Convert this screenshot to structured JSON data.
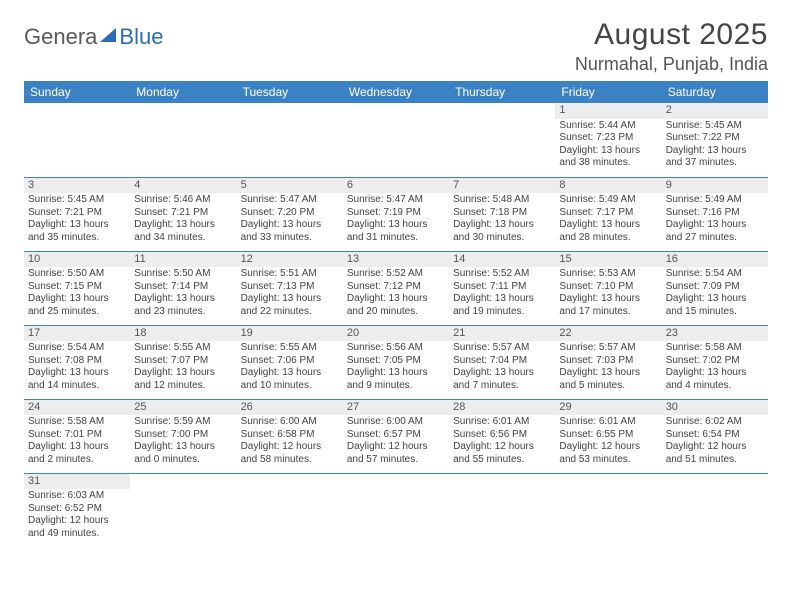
{
  "logo": {
    "part1": "Genera",
    "part2": "Blue"
  },
  "title": "August 2025",
  "location": "Nurmahal, Punjab, India",
  "header_bg": "#3b82c4",
  "header_fg": "#ffffff",
  "daynum_bg": "#ededed",
  "border_color": "#3b82c4",
  "weekdays": [
    "Sunday",
    "Monday",
    "Tuesday",
    "Wednesday",
    "Thursday",
    "Friday",
    "Saturday"
  ],
  "weeks": [
    [
      null,
      null,
      null,
      null,
      null,
      {
        "n": "1",
        "sr": "Sunrise: 5:44 AM",
        "ss": "Sunset: 7:23 PM",
        "d1": "Daylight: 13 hours",
        "d2": "and 38 minutes."
      },
      {
        "n": "2",
        "sr": "Sunrise: 5:45 AM",
        "ss": "Sunset: 7:22 PM",
        "d1": "Daylight: 13 hours",
        "d2": "and 37 minutes."
      }
    ],
    [
      {
        "n": "3",
        "sr": "Sunrise: 5:45 AM",
        "ss": "Sunset: 7:21 PM",
        "d1": "Daylight: 13 hours",
        "d2": "and 35 minutes."
      },
      {
        "n": "4",
        "sr": "Sunrise: 5:46 AM",
        "ss": "Sunset: 7:21 PM",
        "d1": "Daylight: 13 hours",
        "d2": "and 34 minutes."
      },
      {
        "n": "5",
        "sr": "Sunrise: 5:47 AM",
        "ss": "Sunset: 7:20 PM",
        "d1": "Daylight: 13 hours",
        "d2": "and 33 minutes."
      },
      {
        "n": "6",
        "sr": "Sunrise: 5:47 AM",
        "ss": "Sunset: 7:19 PM",
        "d1": "Daylight: 13 hours",
        "d2": "and 31 minutes."
      },
      {
        "n": "7",
        "sr": "Sunrise: 5:48 AM",
        "ss": "Sunset: 7:18 PM",
        "d1": "Daylight: 13 hours",
        "d2": "and 30 minutes."
      },
      {
        "n": "8",
        "sr": "Sunrise: 5:49 AM",
        "ss": "Sunset: 7:17 PM",
        "d1": "Daylight: 13 hours",
        "d2": "and 28 minutes."
      },
      {
        "n": "9",
        "sr": "Sunrise: 5:49 AM",
        "ss": "Sunset: 7:16 PM",
        "d1": "Daylight: 13 hours",
        "d2": "and 27 minutes."
      }
    ],
    [
      {
        "n": "10",
        "sr": "Sunrise: 5:50 AM",
        "ss": "Sunset: 7:15 PM",
        "d1": "Daylight: 13 hours",
        "d2": "and 25 minutes."
      },
      {
        "n": "11",
        "sr": "Sunrise: 5:50 AM",
        "ss": "Sunset: 7:14 PM",
        "d1": "Daylight: 13 hours",
        "d2": "and 23 minutes."
      },
      {
        "n": "12",
        "sr": "Sunrise: 5:51 AM",
        "ss": "Sunset: 7:13 PM",
        "d1": "Daylight: 13 hours",
        "d2": "and 22 minutes."
      },
      {
        "n": "13",
        "sr": "Sunrise: 5:52 AM",
        "ss": "Sunset: 7:12 PM",
        "d1": "Daylight: 13 hours",
        "d2": "and 20 minutes."
      },
      {
        "n": "14",
        "sr": "Sunrise: 5:52 AM",
        "ss": "Sunset: 7:11 PM",
        "d1": "Daylight: 13 hours",
        "d2": "and 19 minutes."
      },
      {
        "n": "15",
        "sr": "Sunrise: 5:53 AM",
        "ss": "Sunset: 7:10 PM",
        "d1": "Daylight: 13 hours",
        "d2": "and 17 minutes."
      },
      {
        "n": "16",
        "sr": "Sunrise: 5:54 AM",
        "ss": "Sunset: 7:09 PM",
        "d1": "Daylight: 13 hours",
        "d2": "and 15 minutes."
      }
    ],
    [
      {
        "n": "17",
        "sr": "Sunrise: 5:54 AM",
        "ss": "Sunset: 7:08 PM",
        "d1": "Daylight: 13 hours",
        "d2": "and 14 minutes."
      },
      {
        "n": "18",
        "sr": "Sunrise: 5:55 AM",
        "ss": "Sunset: 7:07 PM",
        "d1": "Daylight: 13 hours",
        "d2": "and 12 minutes."
      },
      {
        "n": "19",
        "sr": "Sunrise: 5:55 AM",
        "ss": "Sunset: 7:06 PM",
        "d1": "Daylight: 13 hours",
        "d2": "and 10 minutes."
      },
      {
        "n": "20",
        "sr": "Sunrise: 5:56 AM",
        "ss": "Sunset: 7:05 PM",
        "d1": "Daylight: 13 hours",
        "d2": "and 9 minutes."
      },
      {
        "n": "21",
        "sr": "Sunrise: 5:57 AM",
        "ss": "Sunset: 7:04 PM",
        "d1": "Daylight: 13 hours",
        "d2": "and 7 minutes."
      },
      {
        "n": "22",
        "sr": "Sunrise: 5:57 AM",
        "ss": "Sunset: 7:03 PM",
        "d1": "Daylight: 13 hours",
        "d2": "and 5 minutes."
      },
      {
        "n": "23",
        "sr": "Sunrise: 5:58 AM",
        "ss": "Sunset: 7:02 PM",
        "d1": "Daylight: 13 hours",
        "d2": "and 4 minutes."
      }
    ],
    [
      {
        "n": "24",
        "sr": "Sunrise: 5:58 AM",
        "ss": "Sunset: 7:01 PM",
        "d1": "Daylight: 13 hours",
        "d2": "and 2 minutes."
      },
      {
        "n": "25",
        "sr": "Sunrise: 5:59 AM",
        "ss": "Sunset: 7:00 PM",
        "d1": "Daylight: 13 hours",
        "d2": "and 0 minutes."
      },
      {
        "n": "26",
        "sr": "Sunrise: 6:00 AM",
        "ss": "Sunset: 6:58 PM",
        "d1": "Daylight: 12 hours",
        "d2": "and 58 minutes."
      },
      {
        "n": "27",
        "sr": "Sunrise: 6:00 AM",
        "ss": "Sunset: 6:57 PM",
        "d1": "Daylight: 12 hours",
        "d2": "and 57 minutes."
      },
      {
        "n": "28",
        "sr": "Sunrise: 6:01 AM",
        "ss": "Sunset: 6:56 PM",
        "d1": "Daylight: 12 hours",
        "d2": "and 55 minutes."
      },
      {
        "n": "29",
        "sr": "Sunrise: 6:01 AM",
        "ss": "Sunset: 6:55 PM",
        "d1": "Daylight: 12 hours",
        "d2": "and 53 minutes."
      },
      {
        "n": "30",
        "sr": "Sunrise: 6:02 AM",
        "ss": "Sunset: 6:54 PM",
        "d1": "Daylight: 12 hours",
        "d2": "and 51 minutes."
      }
    ],
    [
      {
        "n": "31",
        "sr": "Sunrise: 6:03 AM",
        "ss": "Sunset: 6:52 PM",
        "d1": "Daylight: 12 hours",
        "d2": "and 49 minutes."
      },
      null,
      null,
      null,
      null,
      null,
      null
    ]
  ]
}
